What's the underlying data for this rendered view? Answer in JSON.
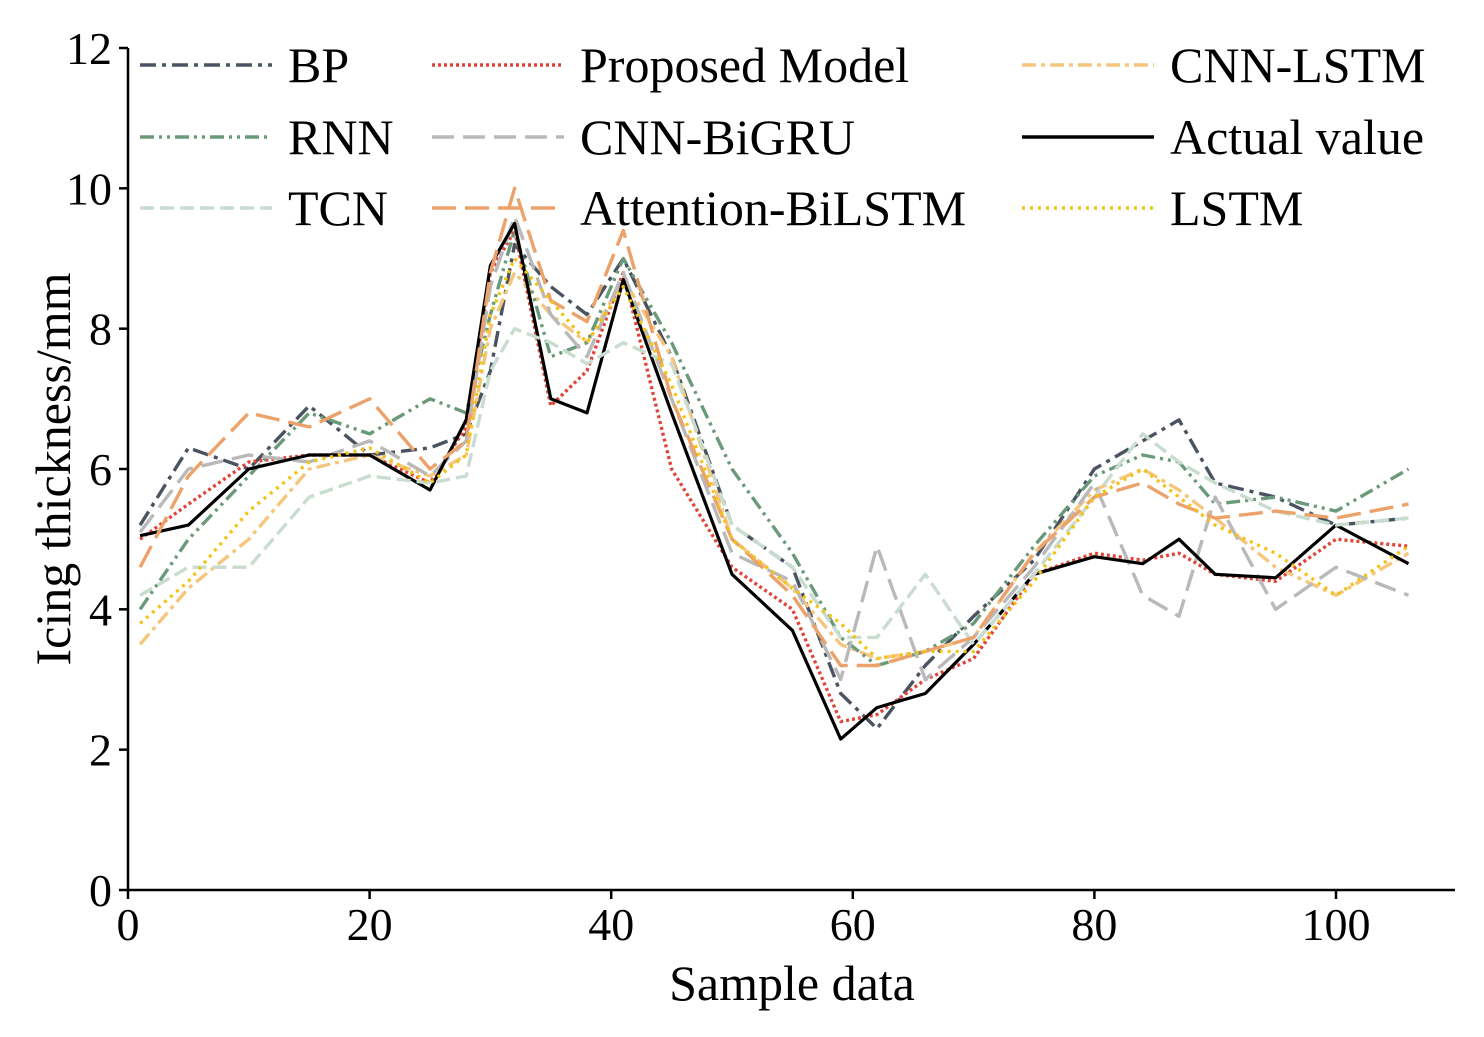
{
  "chart_data": {
    "type": "line",
    "title": "",
    "xlabel": "Sample data",
    "ylabel": "Icing thickness/mm",
    "xlim": [
      0,
      110
    ],
    "ylim": [
      0,
      12
    ],
    "x_ticks": [
      0,
      20,
      40,
      60,
      80,
      100
    ],
    "y_ticks": [
      0,
      2,
      4,
      6,
      8,
      10,
      12
    ],
    "grid": false,
    "legend_position": "top",
    "x": [
      1,
      5,
      10,
      15,
      20,
      25,
      28,
      30,
      32,
      35,
      38,
      41,
      45,
      50,
      55,
      59,
      62,
      66,
      70,
      75,
      80,
      84,
      87,
      90,
      95,
      100,
      106
    ],
    "series": [
      {
        "name": "BP",
        "color": "#4a5361",
        "dash": "16 6 4 6",
        "values": [
          5.2,
          6.3,
          6.0,
          6.9,
          6.2,
          6.3,
          6.5,
          7.4,
          9.2,
          8.6,
          8.2,
          9.0,
          7.6,
          5.2,
          4.6,
          2.8,
          2.3,
          3.2,
          3.9,
          4.7,
          6.0,
          6.4,
          6.7,
          5.8,
          5.6,
          5.2,
          5.3
        ]
      },
      {
        "name": "Proposed Model",
        "color": "#e0453a",
        "dash": "3 3",
        "values": [
          5.0,
          5.5,
          6.1,
          6.2,
          6.2,
          5.8,
          6.6,
          8.8,
          9.4,
          6.9,
          7.4,
          8.8,
          6.0,
          4.6,
          4.0,
          2.4,
          2.5,
          3.0,
          3.3,
          4.5,
          4.8,
          4.7,
          4.8,
          4.5,
          4.4,
          5.0,
          4.9
        ]
      },
      {
        "name": "CNN-LSTM",
        "color": "#f5c77e",
        "dash": "14 5 4 5",
        "values": [
          3.5,
          4.3,
          5.0,
          6.0,
          6.2,
          5.9,
          6.2,
          8.0,
          8.8,
          8.2,
          7.8,
          8.7,
          7.6,
          5.0,
          4.3,
          3.5,
          3.3,
          3.4,
          3.6,
          4.8,
          5.7,
          6.0,
          5.7,
          5.3,
          4.6,
          4.2,
          4.8
        ]
      },
      {
        "name": "RNN",
        "color": "#6b9a7b",
        "dash": "14 5 3 5 3 5",
        "values": [
          4.0,
          5.0,
          5.9,
          6.8,
          6.5,
          7.0,
          6.8,
          8.2,
          9.4,
          7.6,
          7.8,
          9.0,
          7.8,
          6.0,
          4.8,
          3.6,
          3.2,
          3.4,
          3.8,
          4.9,
          5.9,
          6.2,
          6.1,
          5.5,
          5.6,
          5.4,
          6.0
        ]
      },
      {
        "name": "CNN-BiGRU",
        "color": "#b9b9b9",
        "dash": "22 9",
        "values": [
          5.1,
          6.0,
          6.2,
          6.1,
          6.4,
          5.9,
          6.4,
          8.6,
          9.6,
          8.2,
          7.6,
          8.8,
          7.0,
          4.8,
          4.4,
          3.0,
          4.9,
          3.0,
          3.6,
          4.6,
          5.8,
          4.2,
          3.9,
          5.6,
          4.0,
          4.6,
          4.2
        ]
      },
      {
        "name": "Actual value",
        "color": "#000000",
        "dash": "",
        "values": [
          5.05,
          5.2,
          6.0,
          6.2,
          6.2,
          5.7,
          6.7,
          8.9,
          9.5,
          7.0,
          6.8,
          8.7,
          6.8,
          4.5,
          3.7,
          2.15,
          2.6,
          2.8,
          3.5,
          4.5,
          4.75,
          4.65,
          5.0,
          4.5,
          4.45,
          5.2,
          4.65
        ]
      },
      {
        "name": "TCN",
        "color": "#c8dccf",
        "dash": "14 6",
        "values": [
          4.2,
          4.6,
          4.6,
          5.6,
          5.9,
          5.8,
          5.9,
          7.4,
          8.0,
          7.8,
          7.5,
          7.8,
          7.5,
          5.2,
          4.6,
          3.6,
          3.6,
          4.5,
          3.5,
          4.5,
          5.6,
          6.5,
          6.1,
          5.8,
          5.4,
          5.2,
          5.3
        ]
      },
      {
        "name": "Attention-BiLSTM",
        "color": "#eba36b",
        "dash": "24 9",
        "values": [
          4.6,
          5.9,
          6.8,
          6.6,
          7.0,
          6.0,
          6.4,
          8.8,
          10.0,
          8.4,
          8.1,
          9.4,
          7.0,
          5.0,
          4.2,
          3.2,
          3.2,
          3.4,
          3.6,
          4.8,
          5.6,
          5.8,
          5.5,
          5.3,
          5.4,
          5.3,
          5.5
        ]
      },
      {
        "name": "LSTM",
        "color": "#f2c318",
        "dash": "3 5",
        "values": [
          3.8,
          4.4,
          5.4,
          6.1,
          6.3,
          5.8,
          6.2,
          8.2,
          9.0,
          8.4,
          7.8,
          8.6,
          7.2,
          5.0,
          4.3,
          3.8,
          3.3,
          3.4,
          3.4,
          4.4,
          5.6,
          6.0,
          5.6,
          5.2,
          4.8,
          4.2,
          4.9
        ]
      }
    ],
    "legend": {
      "columns": [
        [
          "BP",
          "RNN",
          "TCN"
        ],
        [
          "Proposed Model",
          "CNN-BiGRU",
          "Attention-BiLSTM"
        ],
        [
          "CNN-LSTM",
          "Actual value",
          "LSTM"
        ]
      ]
    }
  }
}
